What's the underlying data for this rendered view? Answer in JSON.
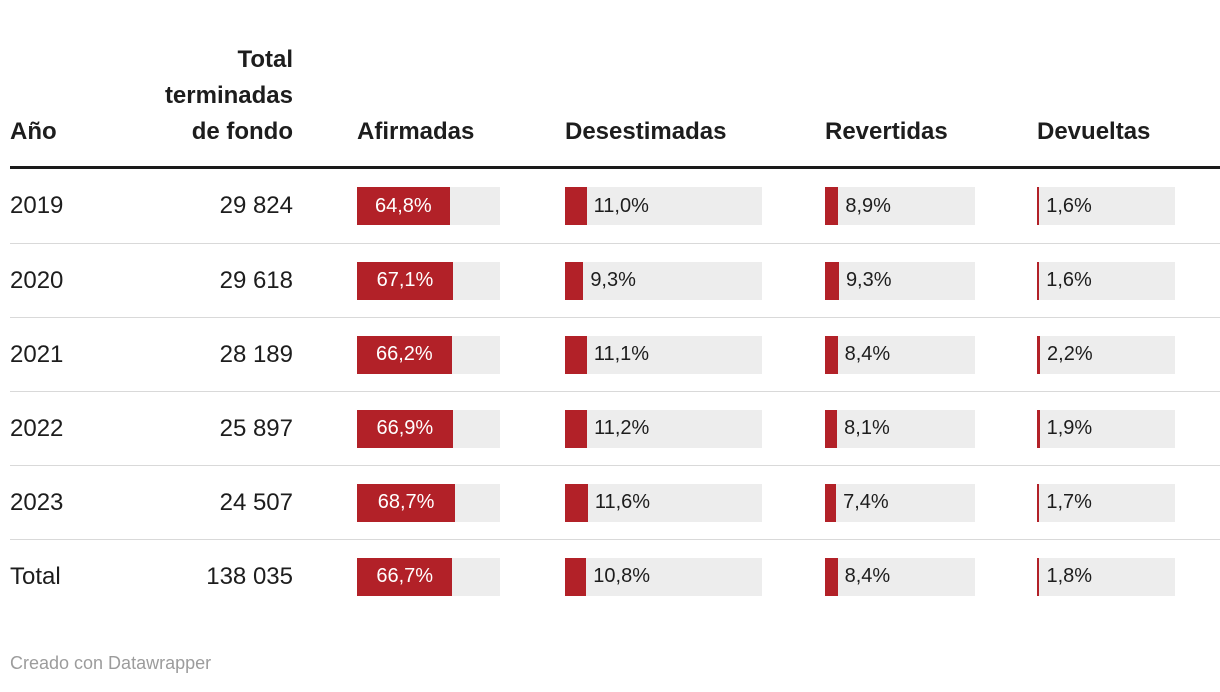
{
  "colors": {
    "bar_red": "#b22128",
    "track_grey": "#ededed",
    "header_rule": "#1a1a1a",
    "row_divider": "#d9d9d9",
    "text": "#1d1d1d",
    "footer_text": "#9c9c9c"
  },
  "table": {
    "headers": {
      "year": "Año",
      "total": "Total terminadas de fondo",
      "afirmadas": "Afirmadas",
      "desestimadas": "Desestimadas",
      "revertidas": "Revertidas",
      "devueltas": "Devueltas"
    },
    "rows": [
      {
        "year": "2019",
        "total": "29 824",
        "bars": [
          {
            "value": 64.8,
            "label": "64,8%"
          },
          {
            "value": 11.0,
            "label": "11,0%"
          },
          {
            "value": 8.9,
            "label": "8,9%"
          },
          {
            "value": 1.6,
            "label": "1,6%"
          }
        ]
      },
      {
        "year": "2020",
        "total": "29 618",
        "bars": [
          {
            "value": 67.1,
            "label": "67,1%"
          },
          {
            "value": 9.3,
            "label": "9,3%"
          },
          {
            "value": 9.3,
            "label": "9,3%"
          },
          {
            "value": 1.6,
            "label": "1,6%"
          }
        ]
      },
      {
        "year": "2021",
        "total": "28 189",
        "bars": [
          {
            "value": 66.2,
            "label": "66,2%"
          },
          {
            "value": 11.1,
            "label": "11,1%"
          },
          {
            "value": 8.4,
            "label": "8,4%"
          },
          {
            "value": 2.2,
            "label": "2,2%"
          }
        ]
      },
      {
        "year": "2022",
        "total": "25 897",
        "bars": [
          {
            "value": 66.9,
            "label": "66,9%"
          },
          {
            "value": 11.2,
            "label": "11,2%"
          },
          {
            "value": 8.1,
            "label": "8,1%"
          },
          {
            "value": 1.9,
            "label": "1,9%"
          }
        ]
      },
      {
        "year": "2023",
        "total": "24 507",
        "bars": [
          {
            "value": 68.7,
            "label": "68,7%"
          },
          {
            "value": 11.6,
            "label": "11,6%"
          },
          {
            "value": 7.4,
            "label": "7,4%"
          },
          {
            "value": 1.7,
            "label": "1,7%"
          }
        ]
      },
      {
        "year": "Total",
        "total": "138 035",
        "bars": [
          {
            "value": 66.7,
            "label": "66,7%"
          },
          {
            "value": 10.8,
            "label": "10,8%"
          },
          {
            "value": 8.4,
            "label": "8,4%"
          },
          {
            "value": 1.8,
            "label": "1,8%"
          }
        ]
      }
    ]
  },
  "footer": {
    "credit": "Creado con Datawrapper"
  },
  "chart_data": {
    "type": "table",
    "columns": [
      "Año",
      "Total terminadas de fondo",
      "Afirmadas",
      "Desestimadas",
      "Revertidas",
      "Devueltas"
    ],
    "rows": [
      [
        "2019",
        29824,
        64.8,
        11.0,
        8.9,
        1.6
      ],
      [
        "2020",
        29618,
        67.1,
        9.3,
        9.3,
        1.6
      ],
      [
        "2021",
        28189,
        66.2,
        11.1,
        8.4,
        2.2
      ],
      [
        "2022",
        25897,
        66.9,
        11.2,
        8.1,
        1.9
      ],
      [
        "2023",
        24507,
        68.7,
        11.6,
        7.4,
        1.7
      ],
      [
        "Total",
        138035,
        66.7,
        10.8,
        8.4,
        1.8
      ]
    ],
    "bar_columns": [
      "Afirmadas",
      "Desestimadas",
      "Revertidas",
      "Devueltas"
    ],
    "bar_scale": [
      0,
      100
    ],
    "value_format": "percent with comma decimal separator",
    "credit": "Creado con Datawrapper"
  }
}
